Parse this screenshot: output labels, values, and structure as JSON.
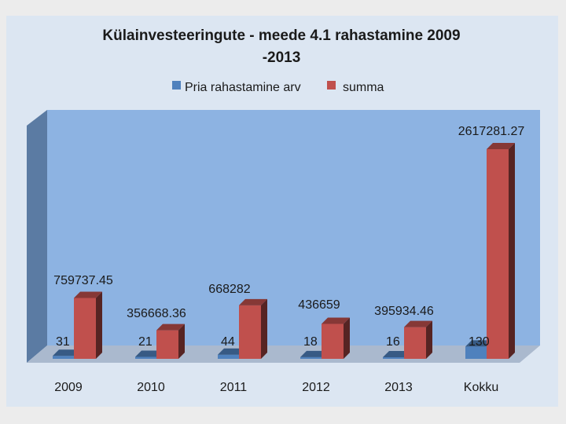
{
  "chart_data": {
    "type": "bar",
    "title_line1": "Külainvesteeringute - meede 4.1  rahastamine 2009",
    "title_line2": "-2013",
    "categories": [
      "2009",
      "2010",
      "2011",
      "2012",
      "2013",
      "Kokku"
    ],
    "series": [
      {
        "name": "Pria rahastamine arv",
        "color": "#4f81bd",
        "values": [
          31,
          21,
          44,
          18,
          16,
          130
        ],
        "labels": [
          "31",
          "21",
          "44",
          "18",
          "16",
          "130"
        ]
      },
      {
        "name": "summa",
        "color": "#c0504d",
        "values": [
          759737.45,
          356668.36,
          668282,
          436659,
          395934.46,
          2617281.27
        ],
        "labels": [
          "759737.45",
          "356668.36",
          "668282",
          "436659",
          "395934.46",
          "2617281.27"
        ]
      }
    ],
    "ylim": [
      0,
      2800000
    ],
    "grid": false,
    "legend_position": "top",
    "plot_background": "#8db3e2",
    "chart_background": "#dce6f2"
  }
}
